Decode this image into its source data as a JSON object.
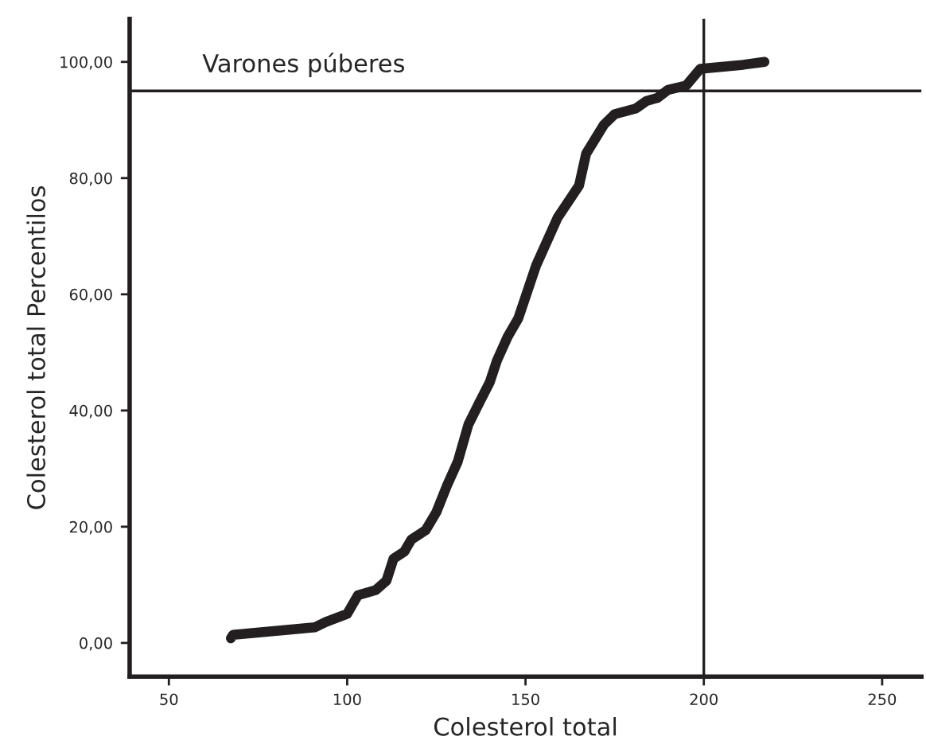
{
  "chart_data": {
    "type": "line",
    "title": "Varones púberes",
    "xlabel": "Colesterol total",
    "ylabel": "Colesterol total Percentilos",
    "series": [
      {
        "color": "#231f20",
        "x": [
          67.4,
          68,
          91,
          94,
          100,
          103,
          108,
          111,
          113,
          116,
          118,
          122,
          125,
          128,
          131,
          134,
          137,
          140,
          142,
          145,
          148,
          153,
          159,
          165,
          167,
          172,
          175,
          181,
          184,
          187,
          190,
          195,
          199,
          211,
          217
        ],
        "values": [
          0.8,
          1.4,
          2.7,
          3.6,
          5.0,
          8.2,
          9.1,
          10.7,
          14.5,
          15.7,
          17.8,
          19.4,
          22.5,
          27.1,
          31.2,
          37.6,
          41.3,
          44.9,
          48.6,
          52.7,
          55.9,
          65.0,
          73.2,
          78.7,
          84.2,
          89.2,
          91.0,
          92.0,
          93.3,
          93.8,
          95.2,
          95.9,
          98.8,
          99.5,
          100.0
        ]
      }
    ],
    "xlim": [
      39,
      261
    ],
    "ylim": [
      -5.8,
      107.4
    ],
    "xticks": [
      50,
      100,
      150,
      200,
      250
    ],
    "yticks": [
      {
        "value": 0,
        "label": "0,00"
      },
      {
        "value": 20,
        "label": "20,00"
      },
      {
        "value": 40,
        "label": "40,00"
      },
      {
        "value": 60,
        "label": "60,00"
      },
      {
        "value": 80,
        "label": "80,00"
      },
      {
        "value": 100,
        "label": "100,00"
      }
    ],
    "ref_lines": [
      {
        "axis": "y",
        "value": 95,
        "color": "#231f20"
      },
      {
        "axis": "x",
        "value": 200,
        "color": "#231f20"
      }
    ],
    "grid": false,
    "legend": false,
    "marker": "none",
    "line_style": "solid"
  }
}
